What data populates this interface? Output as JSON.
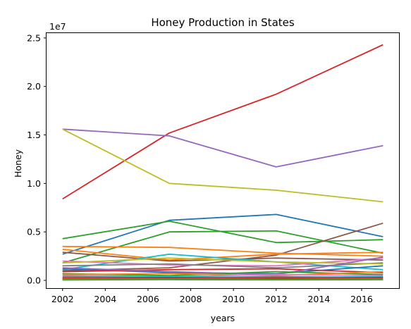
{
  "chart_data": {
    "type": "line",
    "title": "Honey Production in States",
    "xlabel": "years",
    "ylabel": "Honey",
    "y_multiplier_label": "1e7",
    "xlim": [
      2001.25,
      2017.75
    ],
    "ylim": [
      -800000,
      25500000
    ],
    "x_ticks": [
      2002,
      2004,
      2006,
      2008,
      2010,
      2012,
      2014,
      2016
    ],
    "y_ticks": [
      {
        "value": 0,
        "label": "0.0"
      },
      {
        "value": 5000000,
        "label": "0.5"
      },
      {
        "value": 10000000,
        "label": "1.0"
      },
      {
        "value": 15000000,
        "label": "1.5"
      },
      {
        "value": 20000000,
        "label": "2.0"
      },
      {
        "value": 25000000,
        "label": "2.5"
      }
    ],
    "grid": false,
    "x": [
      2002,
      2007,
      2012,
      2017
    ],
    "series": [
      {
        "color": "#d62728",
        "values": [
          8400000,
          15200000,
          19200000,
          24300000
        ]
      },
      {
        "color": "#9467bd",
        "values": [
          15600000,
          14900000,
          11700000,
          13900000
        ]
      },
      {
        "color": "#bcbd22",
        "values": [
          15600000,
          10000000,
          9300000,
          8100000
        ]
      },
      {
        "color": "#1f77b4",
        "values": [
          2700000,
          6200000,
          6800000,
          4500000
        ]
      },
      {
        "color": "#2ca02c",
        "values": [
          4300000,
          6100000,
          3900000,
          4200000
        ]
      },
      {
        "color": "#2ca02c",
        "values": [
          1800000,
          5000000,
          5100000,
          2800000
        ]
      },
      {
        "color": "#8c564b",
        "values": [
          1000000,
          1300000,
          2600000,
          5900000
        ]
      },
      {
        "color": "#ff7f0e",
        "values": [
          3500000,
          3400000,
          2800000,
          2500000
        ]
      },
      {
        "color": "#ff7f0e",
        "values": [
          3200000,
          2100000,
          2700000,
          2900000
        ]
      },
      {
        "color": "#8c564b",
        "values": [
          2900000,
          2000000,
          2300000,
          2100000
        ]
      },
      {
        "color": "#17becf",
        "values": [
          1100000,
          2700000,
          1900000,
          1100000
        ]
      },
      {
        "color": "#e377c2",
        "values": [
          2000000,
          1600000,
          1500000,
          2300000
        ]
      },
      {
        "color": "#7f7f7f",
        "values": [
          1500000,
          1700000,
          1300000,
          1800000
        ]
      },
      {
        "color": "#bcbd22",
        "values": [
          1800000,
          2300000,
          1900000,
          1700000
        ]
      },
      {
        "color": "#1f77b4",
        "values": [
          1200000,
          800000,
          700000,
          1500000
        ]
      },
      {
        "color": "#d62728",
        "values": [
          900000,
          1100000,
          1200000,
          800000
        ]
      },
      {
        "color": "#9467bd",
        "values": [
          1300000,
          900000,
          600000,
          2400000
        ]
      },
      {
        "color": "#2ca02c",
        "values": [
          700000,
          500000,
          900000,
          600000
        ]
      },
      {
        "color": "#ff7f0e",
        "values": [
          600000,
          700000,
          500000,
          900000
        ]
      },
      {
        "color": "#e377c2",
        "values": [
          500000,
          400000,
          600000,
          500000
        ]
      },
      {
        "color": "#7f7f7f",
        "values": [
          400000,
          300000,
          400000,
          300000
        ]
      },
      {
        "color": "#17becf",
        "values": [
          300000,
          400000,
          300000,
          400000
        ]
      },
      {
        "color": "#8c564b",
        "values": [
          200000,
          200000,
          300000,
          200000
        ]
      },
      {
        "color": "#1f77b4",
        "values": [
          150000,
          150000,
          100000,
          150000
        ]
      },
      {
        "color": "#bcbd22",
        "values": [
          100000,
          100000,
          100000,
          100000
        ]
      },
      {
        "color": "#d62728",
        "values": [
          250000,
          300000,
          200000,
          300000
        ]
      },
      {
        "color": "#2ca02c",
        "values": [
          50000,
          80000,
          60000,
          70000
        ]
      }
    ]
  }
}
